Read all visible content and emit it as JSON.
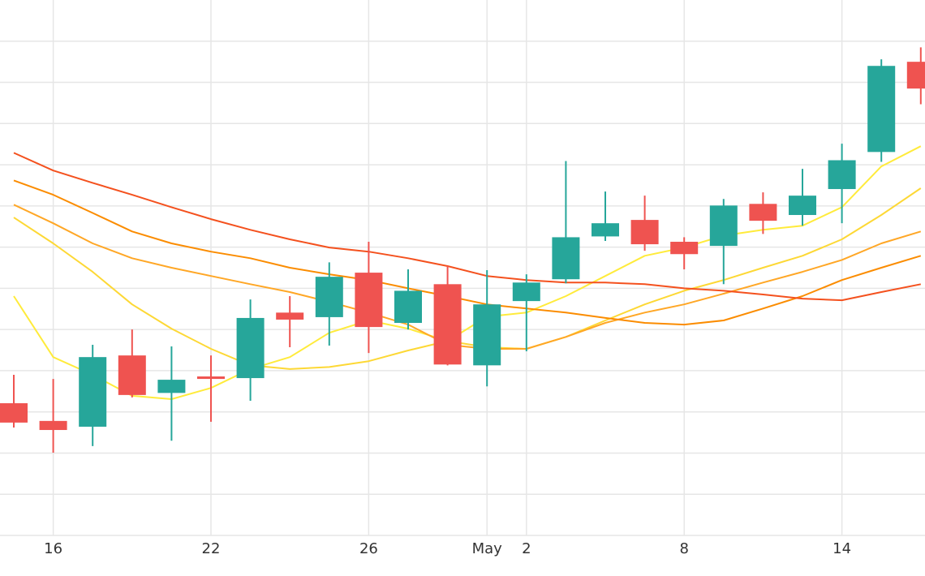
{
  "chart_data": {
    "type": "candlestick",
    "categories": [
      null,
      "16",
      null,
      null,
      null,
      "22",
      null,
      null,
      null,
      "26",
      null,
      null,
      "May",
      "2",
      null,
      null,
      null,
      "8",
      null,
      null,
      null,
      "14",
      null,
      null
    ],
    "open": [
      3.21,
      2.78,
      2.64,
      4.37,
      3.46,
      3.86,
      3.82,
      5.41,
      5.3,
      6.38,
      5.16,
      6.1,
      4.13,
      5.69,
      6.22,
      7.26,
      7.66,
      7.13,
      7.03,
      8.05,
      7.78,
      8.41,
      9.31,
      11.5
    ],
    "high": [
      3.9,
      3.8,
      4.63,
      5.0,
      4.59,
      4.37,
      5.73,
      5.81,
      6.63,
      7.13,
      6.46,
      6.54,
      6.44,
      6.34,
      9.09,
      8.35,
      8.25,
      7.24,
      8.17,
      8.33,
      8.9,
      9.51,
      11.56,
      11.85
    ],
    "low": [
      2.62,
      2.01,
      2.17,
      3.35,
      2.3,
      2.76,
      3.27,
      4.57,
      4.61,
      4.43,
      5.0,
      4.13,
      3.62,
      4.47,
      6.12,
      7.15,
      6.91,
      6.46,
      6.1,
      7.32,
      7.52,
      7.58,
      9.07,
      10.47
    ],
    "close": [
      2.74,
      2.56,
      4.33,
      3.41,
      3.78,
      3.8,
      5.28,
      5.24,
      6.28,
      5.06,
      5.94,
      4.15,
      5.61,
      6.14,
      7.24,
      7.58,
      7.07,
      6.83,
      8.01,
      7.64,
      8.25,
      9.11,
      11.4,
      10.85
    ],
    "increasing_color": "#26a69a",
    "decreasing_color": "#ef5350",
    "lines": [
      {
        "color": "#ffeb3b",
        "values": [
          5.81,
          4.33,
          3.9,
          3.39,
          3.31,
          3.58,
          4.04,
          4.33,
          4.92,
          5.22,
          5.02,
          4.72,
          5.31,
          5.41,
          5.81,
          6.3,
          6.79,
          6.99,
          7.28,
          7.42,
          7.52,
          7.97,
          8.96,
          9.45
        ]
      },
      {
        "color": "#fdd835",
        "values": [
          7.72,
          7.09,
          6.4,
          5.61,
          5.02,
          4.53,
          4.13,
          4.04,
          4.09,
          4.23,
          4.49,
          4.72,
          4.57,
          4.53,
          4.82,
          5.22,
          5.61,
          5.94,
          6.2,
          6.5,
          6.79,
          7.19,
          7.78,
          8.43
        ]
      },
      {
        "color": "#ffa726",
        "values": [
          8.03,
          7.58,
          7.09,
          6.73,
          6.5,
          6.3,
          6.1,
          5.91,
          5.67,
          5.41,
          5.12,
          4.63,
          4.53,
          4.53,
          4.82,
          5.16,
          5.41,
          5.61,
          5.87,
          6.14,
          6.4,
          6.69,
          7.09,
          7.38
        ]
      },
      {
        "color": "#fb8c00",
        "values": [
          8.62,
          8.27,
          7.83,
          7.38,
          7.09,
          6.89,
          6.73,
          6.5,
          6.34,
          6.2,
          6.0,
          5.81,
          5.61,
          5.51,
          5.41,
          5.28,
          5.16,
          5.12,
          5.22,
          5.51,
          5.81,
          6.2,
          6.5,
          6.79
        ]
      },
      {
        "color": "#f4511e",
        "values": [
          9.29,
          8.86,
          8.56,
          8.27,
          7.97,
          7.68,
          7.42,
          7.19,
          6.99,
          6.89,
          6.73,
          6.54,
          6.3,
          6.2,
          6.14,
          6.14,
          6.1,
          6.0,
          5.94,
          5.85,
          5.75,
          5.71,
          5.91,
          6.1
        ]
      }
    ],
    "ylim": [
      0,
      13
    ],
    "yticks": [
      0,
      1,
      2,
      3,
      4,
      5,
      6,
      7,
      8,
      9,
      10,
      11,
      12
    ],
    "grid": true
  }
}
